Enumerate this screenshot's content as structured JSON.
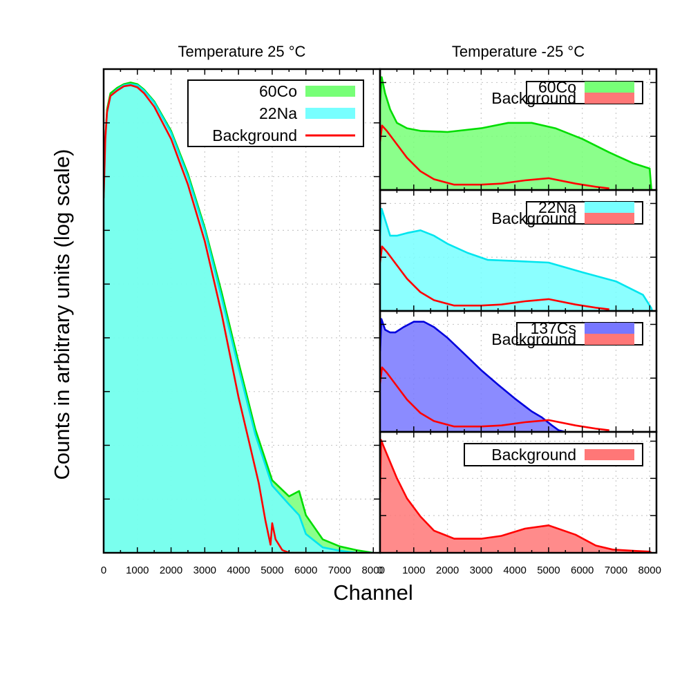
{
  "figure": {
    "ylabel": "Counts in arbitrary units (log scale)",
    "xlabel": "Channel",
    "column_titles": [
      "Temperature 25 °C",
      "Temperature -25 °C"
    ]
  },
  "chart_data": [
    {
      "type": "area",
      "panel": "left",
      "title": "Temperature 25 °C",
      "xlabel": "Channel",
      "ylabel": "Counts in arbitrary units (log scale)",
      "xlim": [
        0,
        8200
      ],
      "ylim": [
        0,
        9
      ],
      "log_scale_y": true,
      "xticks": [
        0,
        1000,
        2000,
        3000,
        4000,
        5000,
        6000,
        7000,
        8000
      ],
      "grid": true,
      "legend": "top-right",
      "series": [
        {
          "name": "60Co",
          "kind": "fill",
          "color": "#77ff77",
          "stroke": "#00dd00",
          "x": [
            0,
            50,
            100,
            200,
            400,
            600,
            800,
            1000,
            1200,
            1500,
            2000,
            2500,
            3000,
            3500,
            4000,
            4500,
            5000,
            5500,
            5800,
            6000,
            6500,
            7000,
            7500,
            8000
          ],
          "y": [
            6.6,
            7.7,
            8.25,
            8.55,
            8.65,
            8.72,
            8.75,
            8.72,
            8.62,
            8.4,
            7.85,
            7.05,
            6.05,
            4.85,
            3.55,
            2.3,
            1.35,
            1.05,
            1.15,
            0.7,
            0.25,
            0.12,
            0.05,
            0.0
          ]
        },
        {
          "name": "22Na",
          "kind": "fill",
          "color": "#77ffff",
          "stroke": "#00e5ee",
          "x": [
            0,
            50,
            100,
            200,
            400,
            600,
            800,
            1000,
            1200,
            1500,
            2000,
            2500,
            3000,
            3500,
            4000,
            4500,
            5000,
            5500,
            5800,
            6000,
            6500,
            7000,
            7500,
            8000
          ],
          "y": [
            6.6,
            7.7,
            8.2,
            8.5,
            8.62,
            8.7,
            8.72,
            8.7,
            8.6,
            8.38,
            7.82,
            7.0,
            6.0,
            4.75,
            3.45,
            2.2,
            1.25,
            0.9,
            0.7,
            0.35,
            0.1,
            0.04,
            0.0,
            0.0
          ]
        },
        {
          "name": "Background",
          "kind": "line",
          "color": "#ff7777",
          "stroke": "#ff0000",
          "x": [
            0,
            50,
            100,
            200,
            400,
            600,
            800,
            1000,
            1200,
            1500,
            2000,
            2500,
            3000,
            3500,
            4000,
            4300,
            4600,
            4800,
            4950,
            5000,
            5100,
            5300,
            5500,
            6000
          ],
          "y": [
            6.6,
            7.7,
            8.2,
            8.5,
            8.6,
            8.68,
            8.7,
            8.66,
            8.55,
            8.3,
            7.7,
            6.85,
            5.8,
            4.45,
            2.9,
            2.1,
            1.3,
            0.6,
            0.15,
            0.55,
            0.25,
            0.05,
            0.0,
            0.0
          ]
        }
      ]
    },
    {
      "type": "area",
      "panel": "right-1",
      "title": "Temperature -25 °C",
      "xlim": [
        0,
        8200
      ],
      "ylim": [
        0,
        2.25
      ],
      "log_scale_y": true,
      "grid": true,
      "legend": "top-right",
      "series": [
        {
          "name": "60Co",
          "kind": "fill",
          "color": "#77ff77",
          "stroke": "#00dd00",
          "x": [
            0,
            50,
            150,
            300,
            500,
            800,
            1200,
            2000,
            3000,
            3800,
            4500,
            5200,
            6000,
            6800,
            7500,
            8000,
            8050
          ],
          "y": [
            1.6,
            2.1,
            1.8,
            1.5,
            1.25,
            1.15,
            1.1,
            1.08,
            1.15,
            1.25,
            1.25,
            1.15,
            0.95,
            0.7,
            0.5,
            0.4,
            0.0
          ]
        },
        {
          "name": "Background",
          "kind": "line",
          "color": "#ff7777",
          "stroke": "#ff0000",
          "x": [
            0,
            60,
            200,
            500,
            800,
            1200,
            1600,
            2200,
            3000,
            3600,
            4300,
            5000,
            5800,
            6400,
            6800
          ],
          "y": [
            0.9,
            1.2,
            1.1,
            0.85,
            0.6,
            0.35,
            0.2,
            0.1,
            0.1,
            0.12,
            0.18,
            0.22,
            0.12,
            0.06,
            0.03
          ]
        }
      ]
    },
    {
      "type": "area",
      "panel": "right-2",
      "xlim": [
        0,
        8200
      ],
      "ylim": [
        0,
        2.25
      ],
      "log_scale_y": true,
      "grid": true,
      "legend": "top-right",
      "series": [
        {
          "name": "22Na",
          "kind": "fill",
          "color": "#77ffff",
          "stroke": "#00e5ee",
          "x": [
            0,
            50,
            150,
            300,
            500,
            800,
            1200,
            1600,
            2000,
            2600,
            3200,
            4000,
            5000,
            6000,
            7000,
            7800,
            8050,
            8070
          ],
          "y": [
            1.4,
            1.9,
            1.7,
            1.4,
            1.4,
            1.45,
            1.5,
            1.4,
            1.25,
            1.08,
            0.95,
            0.93,
            0.9,
            0.72,
            0.55,
            0.3,
            0.05,
            0.0
          ]
        },
        {
          "name": "Background",
          "kind": "line",
          "color": "#ff7777",
          "stroke": "#ff0000",
          "x": [
            0,
            60,
            200,
            500,
            800,
            1200,
            1600,
            2200,
            3000,
            3600,
            4300,
            5000,
            5800,
            6400,
            6800
          ],
          "y": [
            0.9,
            1.2,
            1.1,
            0.85,
            0.6,
            0.35,
            0.2,
            0.1,
            0.1,
            0.12,
            0.18,
            0.22,
            0.12,
            0.06,
            0.03
          ]
        }
      ]
    },
    {
      "type": "area",
      "panel": "right-3",
      "xlim": [
        0,
        8200
      ],
      "ylim": [
        0,
        2.25
      ],
      "log_scale_y": true,
      "grid": true,
      "legend": "top-right",
      "series": [
        {
          "name": "137Cs",
          "kind": "fill",
          "color": "#7777ff",
          "stroke": "#0000dd",
          "x": [
            0,
            40,
            150,
            300,
            450,
            700,
            1000,
            1300,
            1600,
            2000,
            2500,
            3000,
            3500,
            4000,
            4500,
            4800,
            5100,
            5300,
            5500
          ],
          "y": [
            1.5,
            2.1,
            1.9,
            1.85,
            1.85,
            1.95,
            2.05,
            2.05,
            1.95,
            1.75,
            1.45,
            1.15,
            0.88,
            0.62,
            0.38,
            0.27,
            0.12,
            0.03,
            0.0
          ]
        },
        {
          "name": "Background",
          "kind": "line",
          "color": "#ff7777",
          "stroke": "#ff0000",
          "x": [
            0,
            60,
            200,
            500,
            800,
            1200,
            1600,
            2200,
            3000,
            3600,
            4300,
            5000,
            5800,
            6400,
            6800
          ],
          "y": [
            0.9,
            1.2,
            1.1,
            0.85,
            0.6,
            0.35,
            0.2,
            0.1,
            0.1,
            0.12,
            0.18,
            0.22,
            0.12,
            0.06,
            0.03
          ]
        }
      ]
    },
    {
      "type": "area",
      "panel": "right-4",
      "xlim": [
        0,
        8200
      ],
      "ylim": [
        0,
        3.0
      ],
      "log_scale_y": true,
      "xticks": [
        0,
        1000,
        2000,
        3000,
        4000,
        5000,
        6000,
        7000,
        8000
      ],
      "grid": true,
      "legend": "top-right",
      "series": [
        {
          "name": "Background",
          "kind": "fill",
          "color": "#ff7777",
          "stroke": "#ff0000",
          "x": [
            0,
            30,
            100,
            250,
            500,
            800,
            1200,
            1600,
            2200,
            3000,
            3600,
            4300,
            5000,
            5800,
            6400,
            6900,
            7500,
            8000,
            8050
          ],
          "y": [
            1.5,
            2.8,
            2.65,
            2.35,
            1.85,
            1.35,
            0.9,
            0.55,
            0.35,
            0.35,
            0.42,
            0.6,
            0.68,
            0.45,
            0.18,
            0.08,
            0.05,
            0.03,
            0.0
          ]
        }
      ]
    }
  ]
}
